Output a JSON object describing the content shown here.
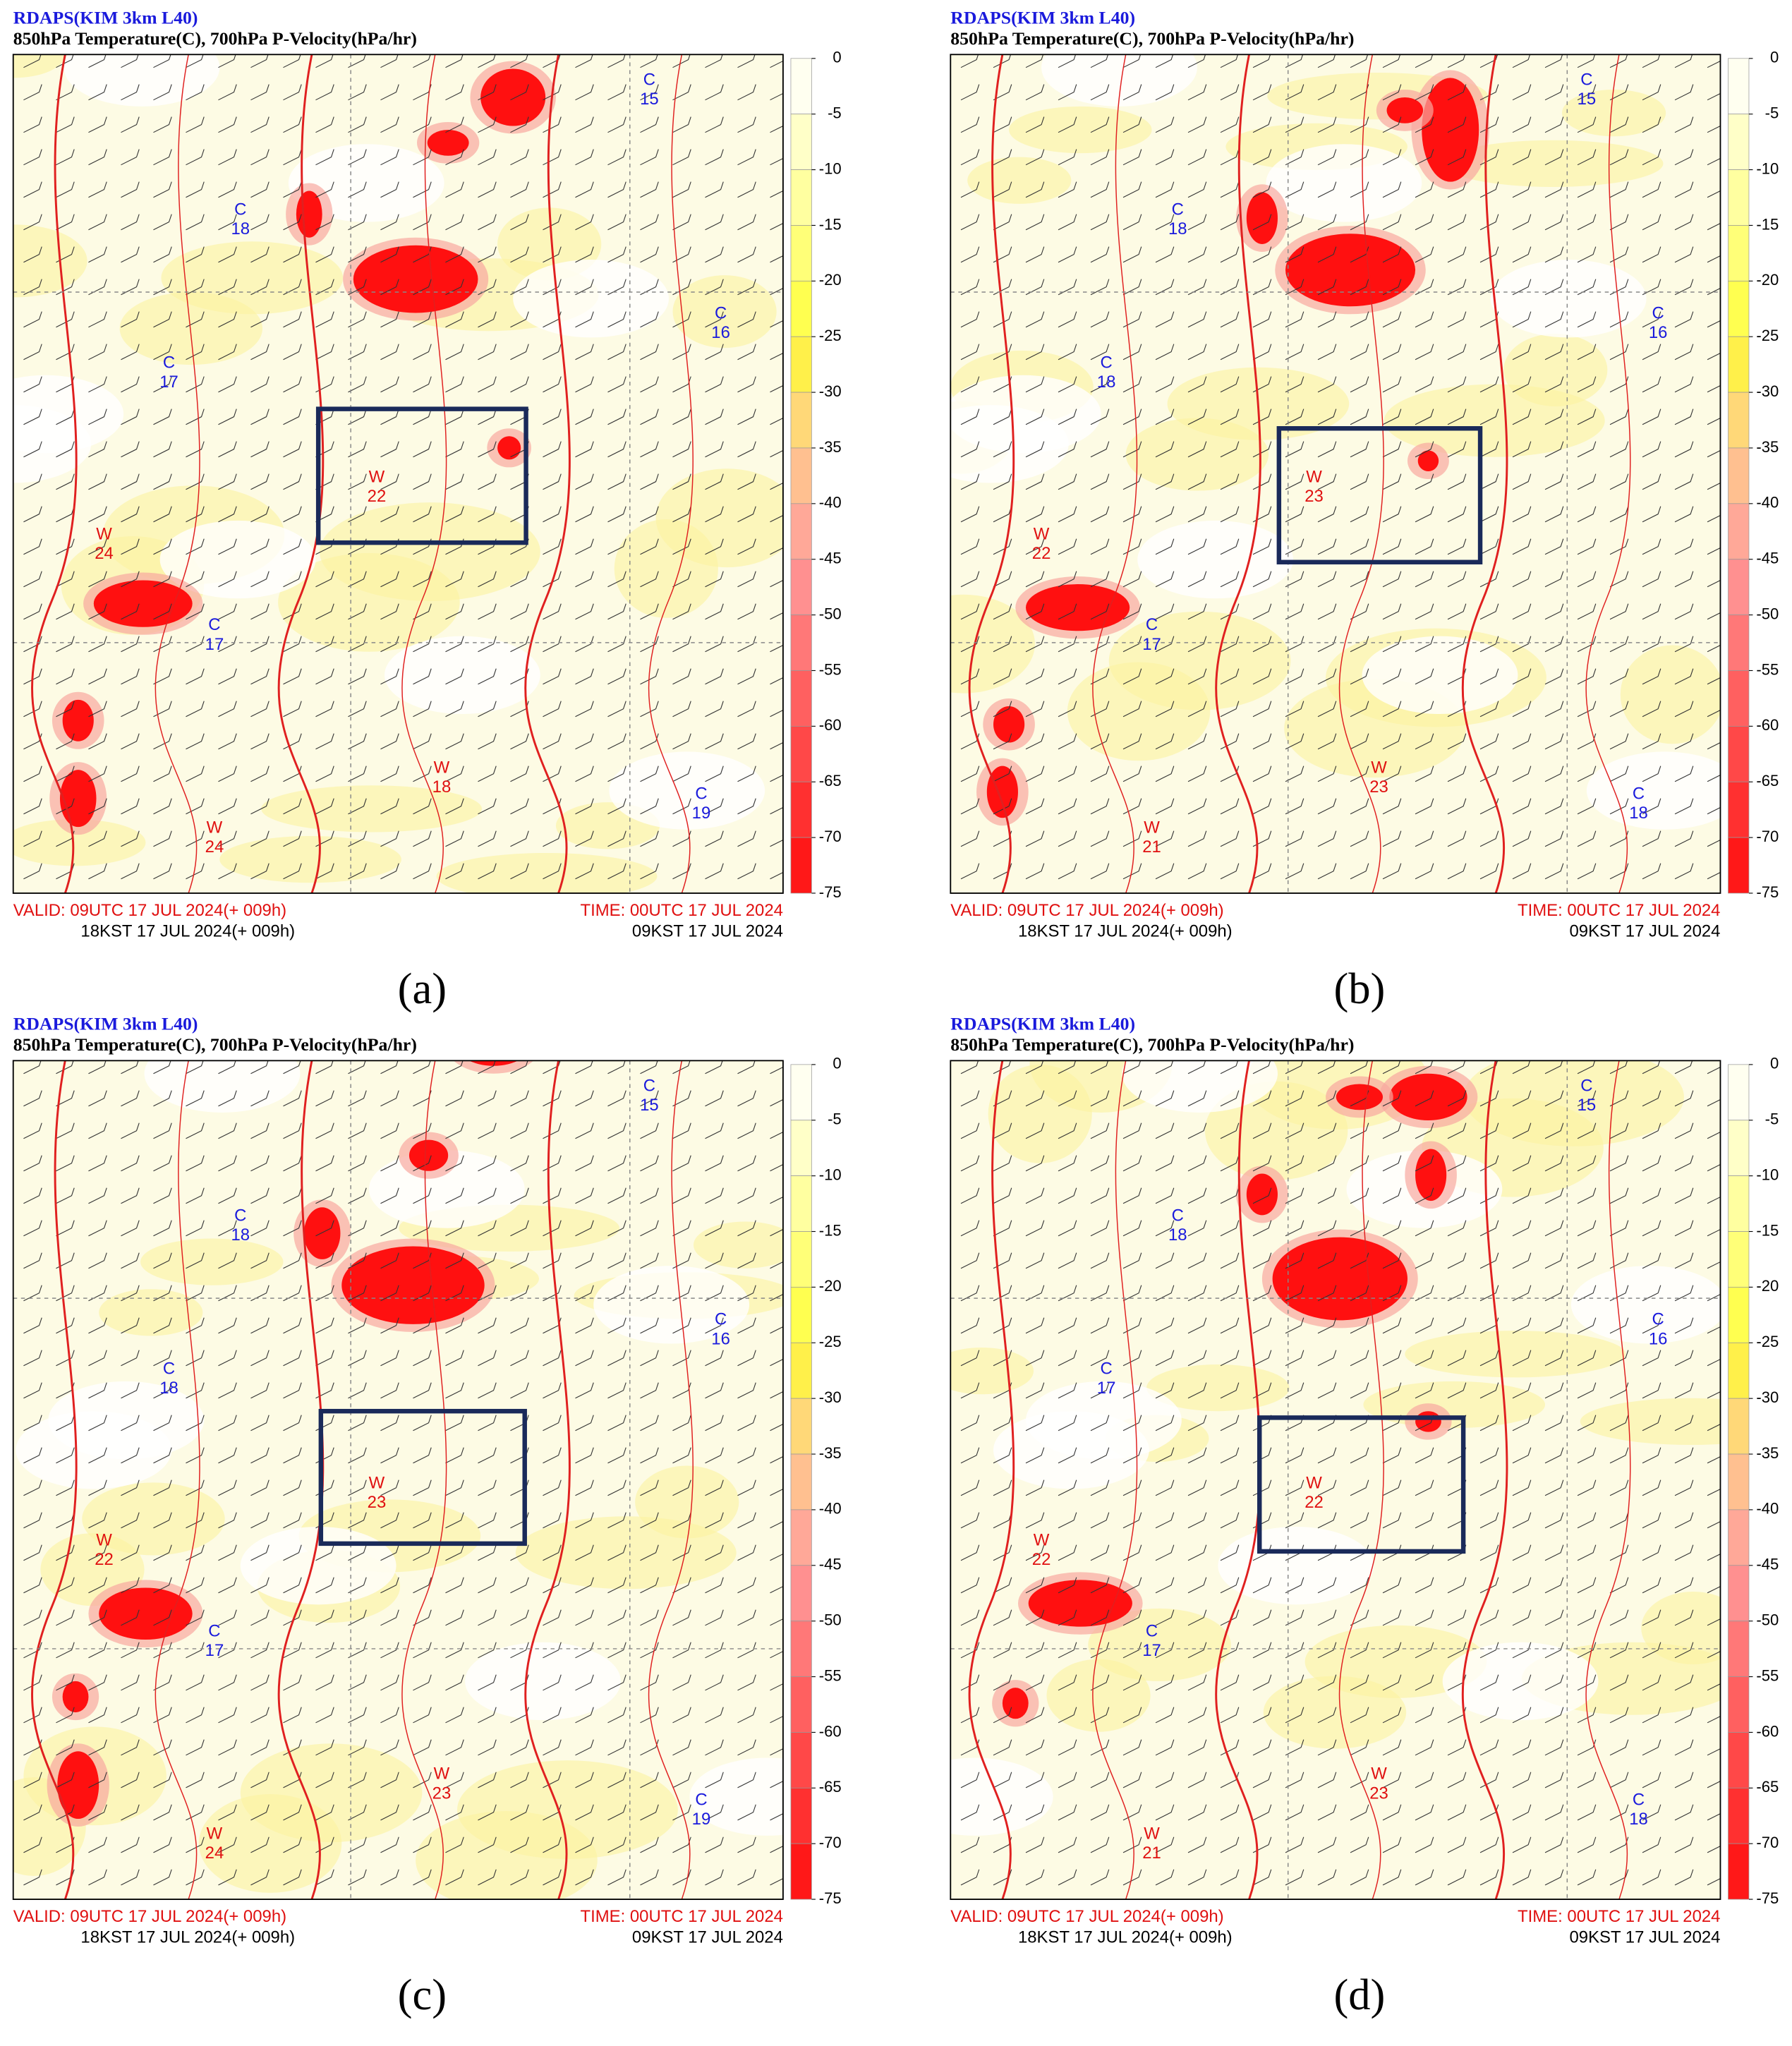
{
  "panels": [
    {
      "label": "(a)",
      "title": "RDAPS(KIM 3km L40)",
      "subtitle": "850hPa Temperature(C), 700hPa P-Velocity(hPa/hr)",
      "valid_utc": "VALID:  09UTC 17 JUL 2024(+ 009h)",
      "valid_kst": "18KST 17 JUL 2024(+ 009h)",
      "time_utc": "TIME: 00UTC 17 JUL 2024",
      "time_kst": "09KST 17 JUL 2024",
      "colorbar": [
        0,
        -5,
        -10,
        -15,
        -20,
        -25,
        -30,
        -35,
        -40,
        -45,
        -50,
        -55,
        -60,
        -65,
        -70,
        -75
      ],
      "labels": [
        {
          "type": "C",
          "value": 15
        },
        {
          "type": "C",
          "value": 18
        },
        {
          "type": "C",
          "value": 17
        },
        {
          "type": "C",
          "value": 16
        },
        {
          "type": "W",
          "value": 22
        },
        {
          "type": "W",
          "value": 24
        },
        {
          "type": "C",
          "value": 17
        },
        {
          "type": "W",
          "value": 18
        },
        {
          "type": "C",
          "value": 19
        },
        {
          "type": "W",
          "value": 24
        }
      ]
    },
    {
      "label": "(b)",
      "title": "RDAPS(KIM 3km L40)",
      "subtitle": "850hPa Temperature(C), 700hPa P-Velocity(hPa/hr)",
      "valid_utc": "VALID:  09UTC 17 JUL 2024(+ 009h)",
      "valid_kst": "18KST 17 JUL 2024(+ 009h)",
      "time_utc": "TIME: 00UTC 17 JUL 2024",
      "time_kst": "09KST 17 JUL 2024",
      "colorbar": [
        0,
        -5,
        -10,
        -15,
        -20,
        -25,
        -30,
        -35,
        -40,
        -45,
        -50,
        -55,
        -60,
        -65,
        -70,
        -75
      ],
      "labels": [
        {
          "type": "C",
          "value": 15
        },
        {
          "type": "C",
          "value": 18
        },
        {
          "type": "C",
          "value": 18
        },
        {
          "type": "C",
          "value": 16
        },
        {
          "type": "W",
          "value": 23
        },
        {
          "type": "W",
          "value": 22
        },
        {
          "type": "C",
          "value": 17
        },
        {
          "type": "W",
          "value": 23
        },
        {
          "type": "C",
          "value": 18
        },
        {
          "type": "W",
          "value": 21
        }
      ]
    },
    {
      "label": "(c)",
      "title": "RDAPS(KIM 3km L40)",
      "subtitle": "850hPa Temperature(C), 700hPa P-Velocity(hPa/hr)",
      "valid_utc": "VALID:  09UTC 17 JUL 2024(+ 009h)",
      "valid_kst": "18KST 17 JUL 2024(+ 009h)",
      "time_utc": "TIME: 00UTC 17 JUL 2024",
      "time_kst": "09KST 17 JUL 2024",
      "colorbar": [
        0,
        -5,
        -10,
        -15,
        -20,
        -25,
        -30,
        -35,
        -40,
        -45,
        -50,
        -55,
        -60,
        -65,
        -70,
        -75
      ],
      "labels": [
        {
          "type": "C",
          "value": 15
        },
        {
          "type": "C",
          "value": 18
        },
        {
          "type": "C",
          "value": 18
        },
        {
          "type": "C",
          "value": 16
        },
        {
          "type": "W",
          "value": 23
        },
        {
          "type": "W",
          "value": 22
        },
        {
          "type": "C",
          "value": 17
        },
        {
          "type": "W",
          "value": 23
        },
        {
          "type": "C",
          "value": 19
        },
        {
          "type": "W",
          "value": 24
        }
      ]
    },
    {
      "label": "(d)",
      "title": "RDAPS(KIM 3km L40)",
      "subtitle": "850hPa Temperature(C), 700hPa P-Velocity(hPa/hr)",
      "valid_utc": "VALID:  09UTC 17 JUL 2024(+ 009h)",
      "valid_kst": "18KST 17 JUL 2024(+ 009h)",
      "time_utc": "TIME: 00UTC 17 JUL 2024",
      "time_kst": "09KST 17 JUL 2024",
      "colorbar": [
        0,
        -5,
        -10,
        -15,
        -20,
        -25,
        -30,
        -35,
        -40,
        -45,
        -50,
        -55,
        -60,
        -65,
        -70,
        -75
      ],
      "labels": [
        {
          "type": "C",
          "value": 15
        },
        {
          "type": "C",
          "value": 18
        },
        {
          "type": "C",
          "value": 17
        },
        {
          "type": "C",
          "value": 16
        },
        {
          "type": "W",
          "value": 22
        },
        {
          "type": "W",
          "value": 22
        },
        {
          "type": "C",
          "value": 17
        },
        {
          "type": "W",
          "value": 23
        },
        {
          "type": "C",
          "value": 18
        },
        {
          "type": "W",
          "value": 21
        }
      ]
    }
  ]
}
